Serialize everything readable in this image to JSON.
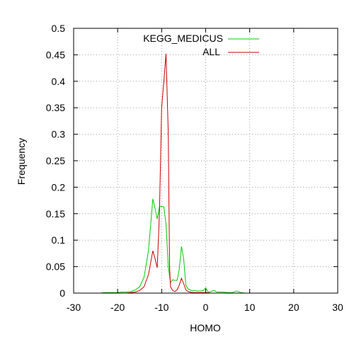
{
  "chart_data": {
    "type": "line",
    "title": "",
    "xlabel": "HOMO",
    "ylabel": "Frequency",
    "xlim": [
      -30,
      30
    ],
    "ylim": [
      0,
      0.5
    ],
    "xticks": [
      -30,
      -20,
      -10,
      0,
      10,
      20,
      30
    ],
    "yticks": [
      0,
      0.05,
      0.1,
      0.15,
      0.2,
      0.25,
      0.3,
      0.35,
      0.4,
      0.45,
      0.5
    ],
    "xtick_labels": [
      "-30",
      "-20",
      "-10",
      "0",
      "10",
      "20",
      "30"
    ],
    "ytick_labels": [
      "0",
      "0.05",
      "0.1",
      "0.15",
      "0.2",
      "0.25",
      "0.3",
      "0.35",
      "0.4",
      "0.45",
      "0.5"
    ],
    "grid": true,
    "legend_position": "top-right",
    "series": [
      {
        "name": "KEGG_MEDICUS",
        "color": "#00cc00",
        "x": [
          -25,
          -24,
          -23,
          -22,
          -21,
          -20,
          -19,
          -18,
          -17,
          -16,
          -15,
          -14,
          -13,
          -12,
          -11.5,
          -11,
          -10.5,
          -10,
          -9.5,
          -9,
          -8.5,
          -8,
          -7.5,
          -7,
          -6.5,
          -6,
          -5.5,
          -5,
          -4.5,
          -4,
          -3.5,
          -3,
          -2.5,
          -2,
          -1.5,
          -1,
          -0.5,
          0,
          0.5,
          1,
          1.5,
          2,
          2.5,
          3,
          4,
          5,
          6,
          7,
          8,
          9,
          10
        ],
        "y": [
          0,
          0,
          0.001,
          0.001,
          0.001,
          0.001,
          0.002,
          0.002,
          0.003,
          0.006,
          0.012,
          0.03,
          0.08,
          0.178,
          0.16,
          0.14,
          0.163,
          0.164,
          0.163,
          0.13,
          0.05,
          0.02,
          0.025,
          0.024,
          0.024,
          0.045,
          0.088,
          0.065,
          0.015,
          0.008,
          0.006,
          0.004,
          0.005,
          0.004,
          0.004,
          0.004,
          0.005,
          0.01,
          0.003,
          0.002,
          0.004,
          0.005,
          0.002,
          0.002,
          0.002,
          0.001,
          0.001,
          0.004,
          0.001,
          0,
          0
        ]
      },
      {
        "name": "ALL",
        "color": "#cc0000",
        "x": [
          -25,
          -24,
          -23,
          -22,
          -21,
          -20,
          -19,
          -18,
          -17,
          -16,
          -15,
          -14,
          -13,
          -12,
          -11.5,
          -11,
          -10.5,
          -10,
          -9.5,
          -9,
          -8.5,
          -8.2,
          -8,
          -7.5,
          -7,
          -6.5,
          -6,
          -5.5,
          -5,
          -4.5,
          -4,
          -3.5,
          -3,
          -2.5,
          -2,
          -1.5,
          -1,
          -0.5,
          0,
          0.5,
          1,
          2,
          3,
          4,
          5,
          6,
          7,
          8,
          9,
          10
        ],
        "y": [
          0,
          0,
          0,
          0,
          0,
          0,
          0,
          0,
          0.001,
          0.002,
          0.005,
          0.012,
          0.035,
          0.08,
          0.065,
          0.048,
          0.15,
          0.35,
          0.4,
          0.452,
          0.3,
          0.05,
          0.012,
          0.005,
          0.003,
          0.006,
          0.015,
          0.028,
          0.018,
          0.006,
          0.003,
          0.002,
          0.001,
          0.001,
          0.001,
          0.001,
          0.001,
          0.001,
          0.001,
          0.001,
          0,
          0,
          0,
          0,
          0,
          0,
          0,
          0,
          0,
          0
        ]
      }
    ]
  }
}
